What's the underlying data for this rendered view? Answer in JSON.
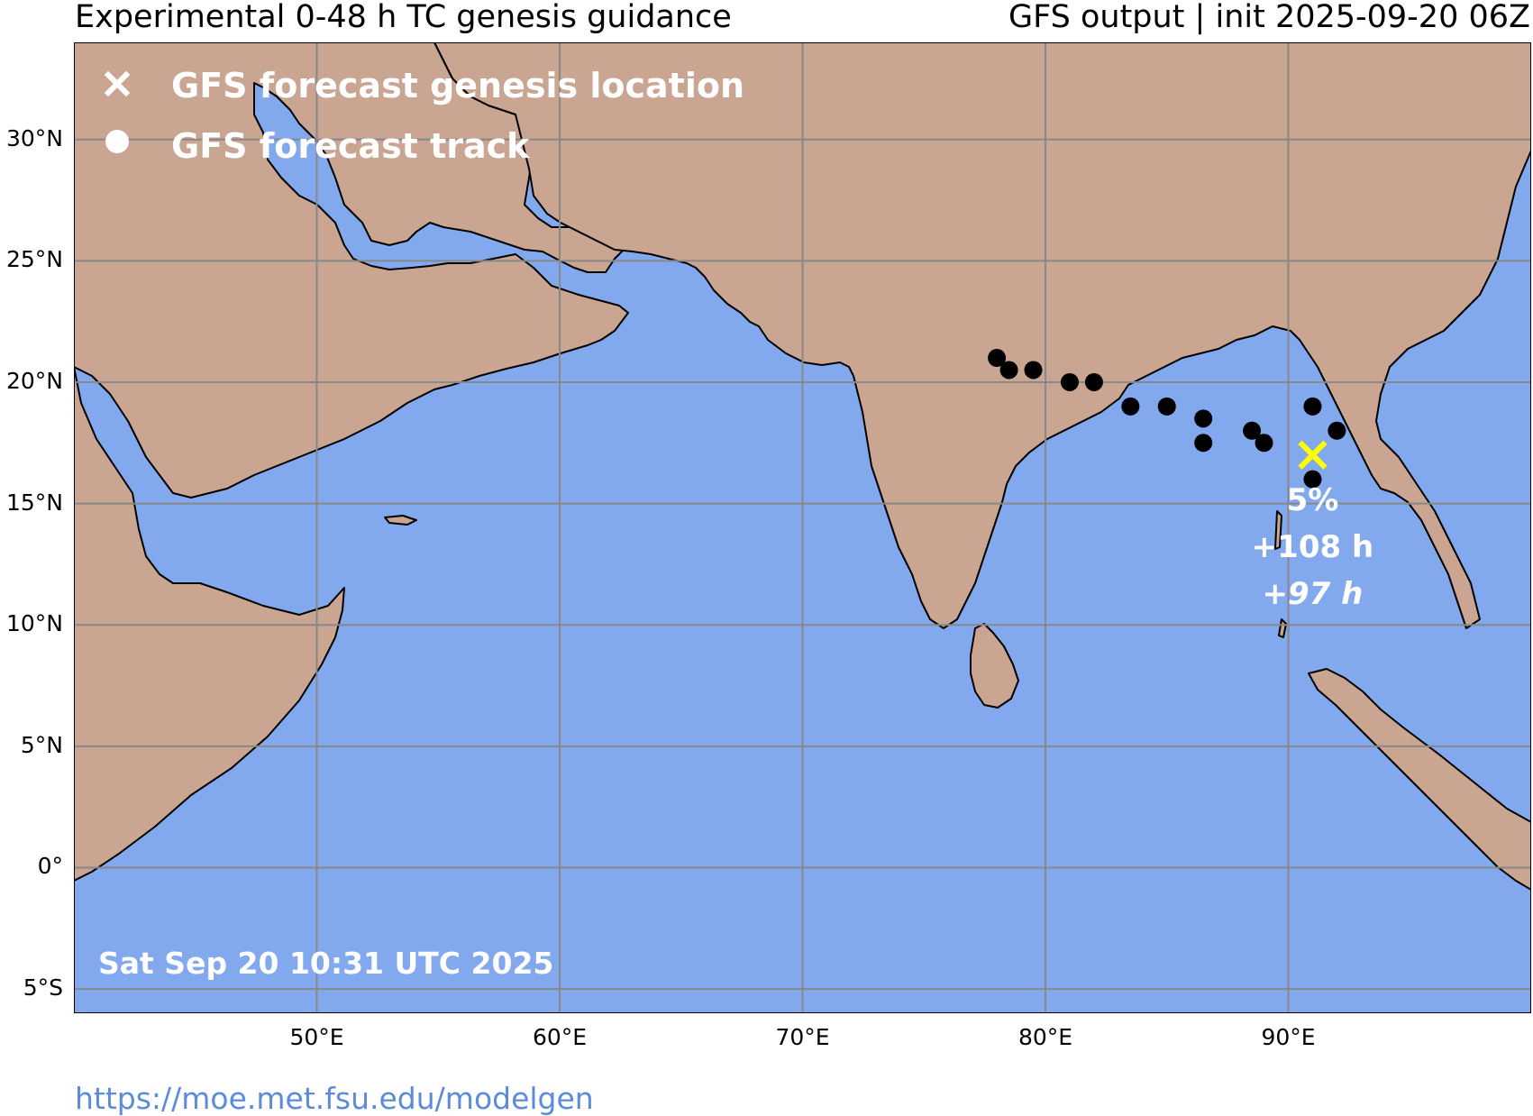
{
  "header": {
    "title_left": "Experimental 0-48 h TC genesis guidance",
    "title_right": "GFS output | init 2025-09-20 06Z"
  },
  "map": {
    "extent": {
      "lon_min": 40,
      "lon_max": 100,
      "lat_min": -6,
      "lat_max": 34
    },
    "colors": {
      "ocean": "#82a8ee",
      "land": "#c9a592",
      "grid": "#888888",
      "border": "#000000",
      "genesis_marker": "#ffff00",
      "track": "#000000"
    },
    "y_ticks": [
      {
        "lat": 30,
        "label": "30°N"
      },
      {
        "lat": 25,
        "label": "25°N"
      },
      {
        "lat": 20,
        "label": "20°N"
      },
      {
        "lat": 15,
        "label": "15°N"
      },
      {
        "lat": 10,
        "label": "10°N"
      },
      {
        "lat": 5,
        "label": "5°N"
      },
      {
        "lat": 0,
        "label": "0°"
      },
      {
        "lat": -5,
        "label": "5°S"
      }
    ],
    "x_ticks": [
      {
        "lon": 50,
        "label": "50°E"
      },
      {
        "lon": 60,
        "label": "60°E"
      },
      {
        "lon": 70,
        "label": "70°E"
      },
      {
        "lon": 80,
        "label": "80°E"
      },
      {
        "lon": 90,
        "label": "90°E"
      }
    ],
    "legend": {
      "genesis_label": "GFS forecast genesis location",
      "track_label": "GFS forecast track"
    },
    "timestamp": "Sat Sep 20 10:31 UTC 2025",
    "genesis": {
      "lon": 91.0,
      "lat": 17.0
    },
    "annotation": {
      "probability": "5%",
      "lead_time": "+108 h",
      "duration": "+97 h"
    },
    "track_points": [
      {
        "lon": 78.0,
        "lat": 21.0
      },
      {
        "lon": 78.5,
        "lat": 20.5
      },
      {
        "lon": 79.5,
        "lat": 20.5
      },
      {
        "lon": 81.0,
        "lat": 20.0
      },
      {
        "lon": 82.0,
        "lat": 20.0
      },
      {
        "lon": 83.5,
        "lat": 19.0
      },
      {
        "lon": 85.0,
        "lat": 19.0
      },
      {
        "lon": 86.5,
        "lat": 18.5
      },
      {
        "lon": 86.5,
        "lat": 17.5
      },
      {
        "lon": 88.5,
        "lat": 18.0
      },
      {
        "lon": 89.0,
        "lat": 17.5
      },
      {
        "lon": 91.0,
        "lat": 19.0
      },
      {
        "lon": 92.0,
        "lat": 18.0
      },
      {
        "lon": 91.0,
        "lat": 16.0
      }
    ]
  },
  "footer": {
    "url": "https://moe.met.fsu.edu/modelgen"
  }
}
